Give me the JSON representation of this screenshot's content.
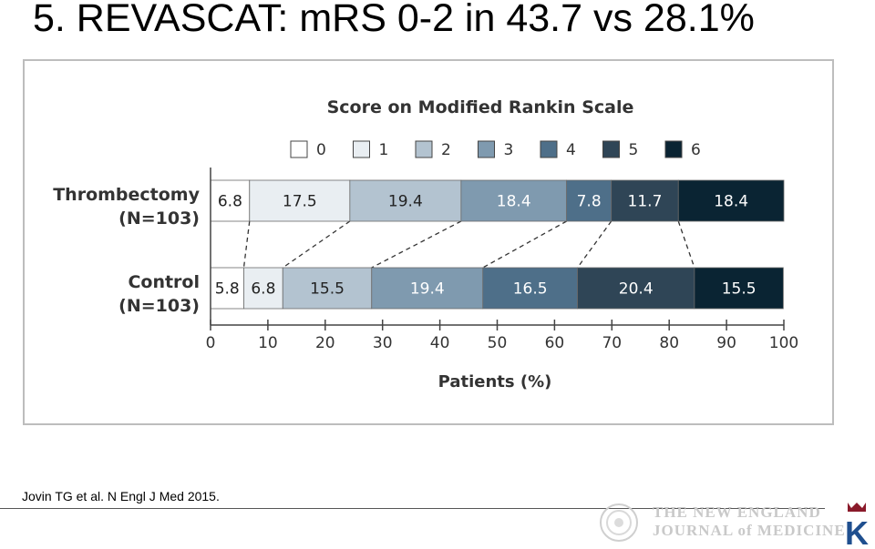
{
  "slide": {
    "title": "5. REVASCAT: mRS 0-2 in 43.7 vs 28.1%",
    "citation": "Jovin TG et al. N Engl J Med 2015."
  },
  "footer": {
    "journal_logo_line1": "THE NEW ENGLAND",
    "journal_logo_line2": "JOURNAL of MEDICINE",
    "brand_letter": "K"
  },
  "chart_data": {
    "type": "bar",
    "stacked": true,
    "orientation": "horizontal",
    "title": "Score on Modified Rankin Scale",
    "xlabel": "Patients (%)",
    "ylabel": "",
    "xlim": [
      0,
      100
    ],
    "xticks": [
      0,
      10,
      20,
      30,
      40,
      50,
      60,
      70,
      80,
      90,
      100
    ],
    "legend_position": "top",
    "grid": false,
    "categories": [
      {
        "line1": "Thrombectomy",
        "line2": "(N=103)"
      },
      {
        "line1": "Control",
        "line2": "(N=103)"
      }
    ],
    "series": [
      {
        "name": "0",
        "color": "#ffffff",
        "values": [
          6.8,
          5.8
        ],
        "labels": [
          "6.8",
          "5.8"
        ]
      },
      {
        "name": "1",
        "color": "#e9eef2",
        "values": [
          17.5,
          6.8
        ],
        "labels": [
          "17.5",
          "6.8"
        ]
      },
      {
        "name": "2",
        "color": "#b3c3d0",
        "values": [
          19.4,
          15.5
        ],
        "labels": [
          "19.4",
          "15.5"
        ]
      },
      {
        "name": "3",
        "color": "#7f9aaf",
        "values": [
          18.4,
          19.4
        ],
        "labels": [
          "18.4",
          "19.4"
        ]
      },
      {
        "name": "4",
        "color": "#4e6f89",
        "values": [
          7.8,
          16.5
        ],
        "labels": [
          "7.8",
          "16.5"
        ]
      },
      {
        "name": "5",
        "color": "#2f4556",
        "values": [
          11.7,
          20.4
        ],
        "labels": [
          "11.7",
          "20.4"
        ]
      },
      {
        "name": "6",
        "color": "#0a2433",
        "values": [
          18.4,
          15.5
        ],
        "labels": [
          "18.4",
          "15.5"
        ]
      }
    ],
    "connector_style": "dashed"
  }
}
